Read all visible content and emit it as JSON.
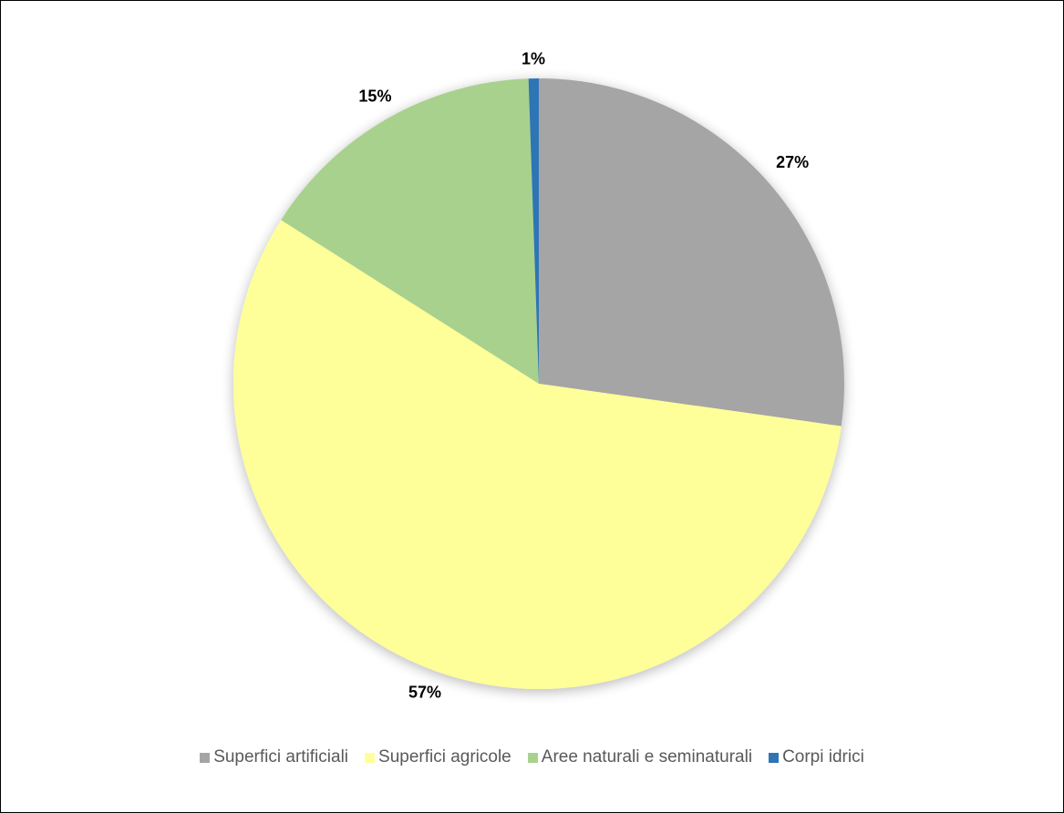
{
  "chart_data": {
    "type": "pie",
    "categories": [
      "Superfici artificiali",
      "Superfici agricole",
      "Aree naturali e seminaturali",
      "Corpi idrici"
    ],
    "values": [
      27,
      57,
      15,
      1
    ],
    "slice_fractions": [
      0.2722,
      0.5679,
      0.1545,
      0.0054
    ],
    "data_labels": [
      "27%",
      "57%",
      "15%",
      "1%"
    ],
    "colors": [
      "#a5a5a5",
      "#ffff99",
      "#a9d18e",
      "#2e75b6"
    ],
    "start_angle_deg": 0,
    "direction": "clockwise",
    "legend_position": "bottom"
  }
}
